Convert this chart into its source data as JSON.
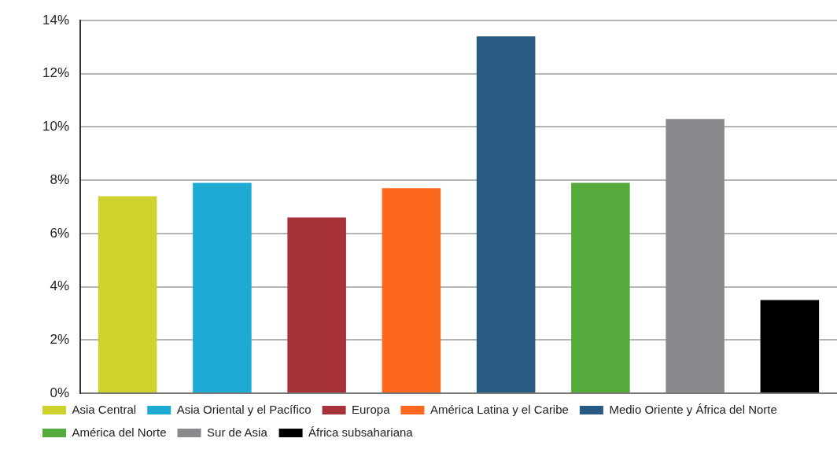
{
  "chart_data": {
    "type": "bar",
    "categories": [
      null,
      null,
      null,
      null,
      null,
      null,
      null,
      null
    ],
    "series": [
      {
        "name": "Asia Central",
        "color": "#cfd12c",
        "values": [
          7.4,
          null,
          null,
          null,
          null,
          null,
          null,
          null
        ]
      },
      {
        "name": "Asia Oriental y el Pacífico",
        "color": "#1dabd3",
        "values": [
          null,
          7.9,
          null,
          null,
          null,
          null,
          null,
          null
        ]
      },
      {
        "name": "Europa",
        "color": "#a7323a",
        "values": [
          null,
          null,
          6.6,
          null,
          null,
          null,
          null,
          null
        ]
      },
      {
        "name": "América Latina y el Caribe",
        "color": "#fd681f",
        "values": [
          null,
          null,
          null,
          7.7,
          null,
          null,
          null,
          null
        ]
      },
      {
        "name": "Medio Oriente y África del Norte",
        "color": "#295a83",
        "values": [
          null,
          null,
          null,
          null,
          13.4,
          null,
          null,
          null
        ]
      },
      {
        "name": "América del Norte",
        "color": "#54aa3a",
        "values": [
          null,
          null,
          null,
          null,
          null,
          7.9,
          null,
          null
        ]
      },
      {
        "name": "Sur de Asia",
        "color": "#8a898e",
        "values": [
          null,
          null,
          null,
          null,
          null,
          null,
          10.3,
          null
        ]
      },
      {
        "name": "África subsahariana",
        "color": "#000000",
        "values": [
          null,
          null,
          null,
          null,
          null,
          null,
          null,
          3.5
        ]
      }
    ],
    "ylim": [
      0,
      14
    ],
    "yticks": [
      {
        "value": 0,
        "label": "0%"
      },
      {
        "value": 2,
        "label": "2%"
      },
      {
        "value": 4,
        "label": "4%"
      },
      {
        "value": 6,
        "label": "6%"
      },
      {
        "value": 8,
        "label": "8%"
      },
      {
        "value": 10,
        "label": "10%"
      },
      {
        "value": 12,
        "label": "12%"
      },
      {
        "value": 14,
        "label": "14%"
      }
    ],
    "grid": "y",
    "legend": "bottom",
    "tick_labels": "y"
  }
}
